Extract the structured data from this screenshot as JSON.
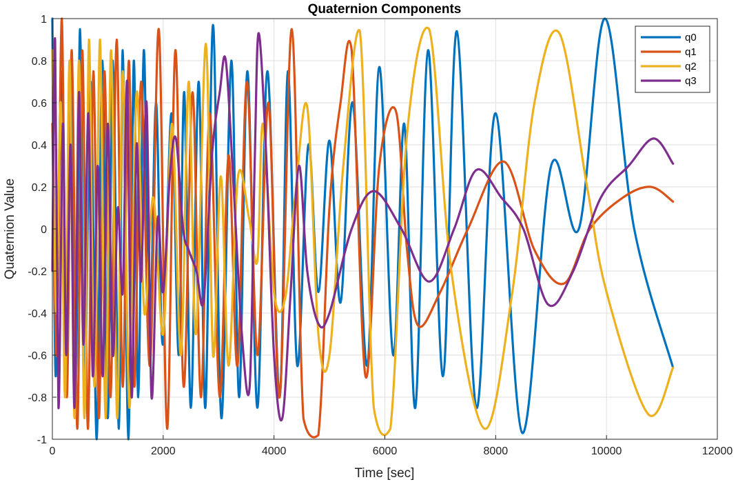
{
  "chart_data": {
    "type": "line",
    "title": "Quaternion Components",
    "xlabel": "Time [sec]",
    "ylabel": "Quaternion Value",
    "xlim": [
      0,
      12000
    ],
    "ylim": [
      -1,
      1
    ],
    "x_ticks": [
      "0",
      "2000",
      "4000",
      "6000",
      "8000",
      "10000",
      "12000"
    ],
    "y_ticks": [
      "-1",
      "-0.8",
      "-0.6",
      "-0.4",
      "-0.2",
      "0",
      "0.2",
      "0.4",
      "0.6",
      "0.8",
      "1"
    ],
    "grid": true,
    "legend_position": "top-right",
    "x_end": 11200,
    "series": [
      {
        "name": "q0",
        "color": "#0072BD",
        "points": [
          [
            0,
            1
          ],
          [
            60,
            -0.7
          ],
          [
            160,
            0.75
          ],
          [
            230,
            -0.7
          ],
          [
            330,
            0.7
          ],
          [
            420,
            -0.75
          ],
          [
            500,
            0.95
          ],
          [
            580,
            -0.8
          ],
          [
            690,
            0.7
          ],
          [
            800,
            -1.0
          ],
          [
            900,
            0.8
          ],
          [
            1000,
            -0.9
          ],
          [
            1090,
            0.8
          ],
          [
            1200,
            -0.95
          ],
          [
            1270,
            0.85
          ],
          [
            1370,
            -1.0
          ],
          [
            1470,
            0.8
          ],
          [
            1550,
            -0.8
          ],
          [
            1650,
            0.85
          ],
          [
            1750,
            -0.6
          ],
          [
            1870,
            0.6
          ],
          [
            1990,
            -0.55
          ],
          [
            2150,
            0.55
          ],
          [
            2280,
            -0.6
          ],
          [
            2380,
            0.65
          ],
          [
            2500,
            -0.85
          ],
          [
            2640,
            0.7
          ],
          [
            2760,
            -0.85
          ],
          [
            2900,
            0.97
          ],
          [
            3050,
            -0.9
          ],
          [
            3230,
            0.8
          ],
          [
            3370,
            -0.8
          ],
          [
            3520,
            0.75
          ],
          [
            3700,
            -0.85
          ],
          [
            3880,
            0.75
          ],
          [
            4100,
            -0.8
          ],
          [
            4250,
            0.75
          ],
          [
            4420,
            -0.65
          ],
          [
            4620,
            0.4
          ],
          [
            4800,
            -0.3
          ],
          [
            5000,
            0.42
          ],
          [
            5200,
            -0.35
          ],
          [
            5420,
            0.6
          ],
          [
            5680,
            -0.65
          ],
          [
            5900,
            0.77
          ],
          [
            6150,
            -0.6
          ],
          [
            6350,
            0.5
          ],
          [
            6550,
            -0.85
          ],
          [
            6780,
            0.85
          ],
          [
            7050,
            -0.7
          ],
          [
            7300,
            0.94
          ],
          [
            7650,
            -0.85
          ],
          [
            8000,
            0.55
          ],
          [
            8480,
            -0.97
          ],
          [
            9000,
            0.3
          ],
          [
            9500,
            0.0
          ],
          [
            9970,
            1.0
          ],
          [
            10500,
            0.0
          ],
          [
            11200,
            -0.66
          ]
        ]
      },
      {
        "name": "q1",
        "color": "#D95319",
        "points": [
          [
            0,
            0.5
          ],
          [
            80,
            -0.6
          ],
          [
            170,
            1.0
          ],
          [
            260,
            -0.8
          ],
          [
            350,
            0.85
          ],
          [
            450,
            -0.95
          ],
          [
            540,
            0.85
          ],
          [
            640,
            -0.95
          ],
          [
            740,
            0.75
          ],
          [
            840,
            -0.9
          ],
          [
            940,
            0.75
          ],
          [
            1050,
            -0.8
          ],
          [
            1160,
            0.9
          ],
          [
            1270,
            -0.75
          ],
          [
            1380,
            0.8
          ],
          [
            1480,
            -0.75
          ],
          [
            1600,
            0.7
          ],
          [
            1760,
            -0.65
          ],
          [
            1920,
            0.95
          ],
          [
            2070,
            -0.95
          ],
          [
            2220,
            0.85
          ],
          [
            2370,
            -0.75
          ],
          [
            2530,
            0.65
          ],
          [
            2680,
            -0.8
          ],
          [
            2840,
            0.55
          ],
          [
            3020,
            -0.8
          ],
          [
            3180,
            0.35
          ],
          [
            3340,
            -0.65
          ],
          [
            3510,
            0.7
          ],
          [
            3700,
            -0.6
          ],
          [
            3900,
            0.6
          ],
          [
            4100,
            -0.8
          ],
          [
            4320,
            0.95
          ],
          [
            4530,
            -0.9
          ],
          [
            4800,
            -0.98
          ],
          [
            5000,
            0.1
          ],
          [
            5200,
            0.6
          ],
          [
            5400,
            0.85
          ],
          [
            5650,
            -0.7
          ],
          [
            5900,
            0.3
          ],
          [
            6200,
            0.56
          ],
          [
            6400,
            -0.1
          ],
          [
            6600,
            -0.46
          ],
          [
            7000,
            -0.3
          ],
          [
            7500,
            0.0
          ],
          [
            8150,
            0.32
          ],
          [
            8700,
            -0.1
          ],
          [
            9230,
            -0.26
          ],
          [
            9700,
            0.0
          ],
          [
            10300,
            0.15
          ],
          [
            10800,
            0.2
          ],
          [
            11200,
            0.13
          ]
        ]
      },
      {
        "name": "q2",
        "color": "#EDB120",
        "points": [
          [
            0,
            0.85
          ],
          [
            70,
            -0.4
          ],
          [
            150,
            0.6
          ],
          [
            230,
            -0.8
          ],
          [
            310,
            0.8
          ],
          [
            400,
            -0.9
          ],
          [
            480,
            0.8
          ],
          [
            580,
            -0.9
          ],
          [
            660,
            0.9
          ],
          [
            760,
            -0.75
          ],
          [
            860,
            0.9
          ],
          [
            960,
            -0.9
          ],
          [
            1060,
            0.85
          ],
          [
            1170,
            -0.9
          ],
          [
            1270,
            0.75
          ],
          [
            1390,
            -0.85
          ],
          [
            1520,
            0.65
          ],
          [
            1660,
            -0.4
          ],
          [
            1820,
            0.15
          ],
          [
            2000,
            -0.5
          ],
          [
            2160,
            0.5
          ],
          [
            2320,
            -0.6
          ],
          [
            2460,
            0.7
          ],
          [
            2590,
            -0.5
          ],
          [
            2770,
            0.88
          ],
          [
            2900,
            -0.6
          ],
          [
            3040,
            0.25
          ],
          [
            3180,
            -0.65
          ],
          [
            3350,
            0.25
          ],
          [
            3550,
            0.05
          ],
          [
            3700,
            -0.15
          ],
          [
            3800,
            0.5
          ],
          [
            4000,
            -0.3
          ],
          [
            4200,
            -0.33
          ],
          [
            4380,
            0.15
          ],
          [
            4600,
            0.58
          ],
          [
            4800,
            -0.5
          ],
          [
            5000,
            -0.6
          ],
          [
            5250,
            0.3
          ],
          [
            5550,
            0.94
          ],
          [
            5800,
            -0.85
          ],
          [
            6100,
            -0.95
          ],
          [
            6400,
            0.45
          ],
          [
            6800,
            0.95
          ],
          [
            7200,
            -0.2
          ],
          [
            7800,
            -0.95
          ],
          [
            8300,
            -0.3
          ],
          [
            8700,
            0.6
          ],
          [
            9150,
            0.93
          ],
          [
            9650,
            0.2
          ],
          [
            10000,
            -0.3
          ],
          [
            10750,
            -0.88
          ],
          [
            11200,
            -0.66
          ]
        ]
      },
      {
        "name": "q3",
        "color": "#7E2F8E",
        "points": [
          [
            0,
            -0.2
          ],
          [
            50,
            0.9
          ],
          [
            110,
            -0.85
          ],
          [
            190,
            0.5
          ],
          [
            250,
            -0.6
          ],
          [
            330,
            0.4
          ],
          [
            400,
            -0.85
          ],
          [
            480,
            0.65
          ],
          [
            560,
            -0.55
          ],
          [
            650,
            0.55
          ],
          [
            730,
            -0.7
          ],
          [
            820,
            0.3
          ],
          [
            910,
            -0.7
          ],
          [
            1000,
            0.5
          ],
          [
            1090,
            -0.6
          ],
          [
            1180,
            0.1
          ],
          [
            1270,
            -0.3
          ],
          [
            1350,
            0.7
          ],
          [
            1430,
            -0.8
          ],
          [
            1520,
            0.4
          ],
          [
            1600,
            -0.25
          ],
          [
            1700,
            0.6
          ],
          [
            1790,
            -0.8
          ],
          [
            1900,
            0.05
          ],
          [
            2000,
            -0.3
          ],
          [
            2120,
            0.25
          ],
          [
            2230,
            0.43
          ],
          [
            2360,
            0.0
          ],
          [
            2460,
            -0.1
          ],
          [
            2600,
            -0.2
          ],
          [
            2730,
            -0.34
          ],
          [
            2880,
            0.35
          ],
          [
            3020,
            0.65
          ],
          [
            3130,
            0.8
          ],
          [
            3270,
            0.2
          ],
          [
            3420,
            -0.5
          ],
          [
            3560,
            -0.75
          ],
          [
            3650,
            0.3
          ],
          [
            3720,
            0.93
          ],
          [
            3850,
            0.4
          ],
          [
            4000,
            -0.6
          ],
          [
            4150,
            -0.9
          ],
          [
            4300,
            -0.3
          ],
          [
            4450,
            0.3
          ],
          [
            4600,
            -0.2
          ],
          [
            4800,
            -0.45
          ],
          [
            5000,
            -0.4
          ],
          [
            5400,
            0.0
          ],
          [
            5800,
            0.18
          ],
          [
            6300,
            0.0
          ],
          [
            6800,
            -0.25
          ],
          [
            7250,
            0.0
          ],
          [
            7650,
            0.28
          ],
          [
            8100,
            0.15
          ],
          [
            8500,
            0.0
          ],
          [
            8950,
            -0.36
          ],
          [
            9400,
            -0.2
          ],
          [
            9900,
            0.15
          ],
          [
            10400,
            0.3
          ],
          [
            10850,
            0.43
          ],
          [
            11200,
            0.31
          ]
        ]
      }
    ]
  }
}
